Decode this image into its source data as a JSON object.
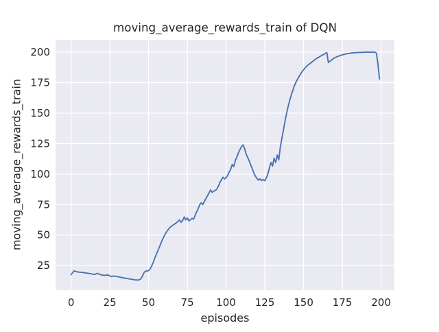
{
  "figure": {
    "background": "#ffffff"
  },
  "chart_data": {
    "type": "line",
    "title": "moving_average_rewards_train of DQN",
    "xlabel": "episodes",
    "ylabel": "moving_average_rewards_train",
    "x_ticks": [
      0,
      25,
      50,
      75,
      100,
      125,
      150,
      175,
      200
    ],
    "y_ticks": [
      25,
      50,
      75,
      100,
      125,
      150,
      175,
      200
    ],
    "xlim": [
      -10.0,
      208.6
    ],
    "ylim": [
      4.8,
      210.2
    ],
    "grid": true,
    "legend": "none",
    "style": {
      "axes_background": "#EAEAF2",
      "grid_color": "#FFFFFF",
      "line_color": "#4C72B0",
      "text_color": "#262626",
      "figure_background": "#FFFFFF"
    },
    "series": [
      {
        "name": "moving_average_rewards_train",
        "points": [
          [
            0,
            17.5
          ],
          [
            1,
            19.2
          ],
          [
            2,
            20.6
          ],
          [
            3,
            20.2
          ],
          [
            4,
            19.8
          ],
          [
            5,
            19.6
          ],
          [
            6,
            19.5
          ],
          [
            7,
            19.4
          ],
          [
            8,
            19.2
          ],
          [
            9,
            19.0
          ],
          [
            10,
            18.8
          ],
          [
            11,
            18.6
          ],
          [
            12,
            18.4
          ],
          [
            13,
            18.2
          ],
          [
            14,
            18.0
          ],
          [
            15,
            17.6
          ],
          [
            16,
            18.2
          ],
          [
            17,
            18.6
          ],
          [
            18,
            18.0
          ],
          [
            19,
            17.5
          ],
          [
            20,
            17.2
          ],
          [
            21,
            17.0
          ],
          [
            22,
            17.0
          ],
          [
            23,
            17.1
          ],
          [
            24,
            17.2
          ],
          [
            25,
            16.5
          ],
          [
            26,
            15.9
          ],
          [
            27,
            16.4
          ],
          [
            28,
            16.3
          ],
          [
            29,
            16.2
          ],
          [
            30,
            15.9
          ],
          [
            31,
            15.6
          ],
          [
            32,
            15.3
          ],
          [
            33,
            15.1
          ],
          [
            34,
            14.8
          ],
          [
            35,
            14.6
          ],
          [
            36,
            14.4
          ],
          [
            37,
            14.2
          ],
          [
            38,
            13.9
          ],
          [
            39,
            13.7
          ],
          [
            40,
            13.5
          ],
          [
            41,
            13.3
          ],
          [
            42,
            13.2
          ],
          [
            43,
            13.1
          ],
          [
            44,
            13.3
          ],
          [
            45,
            14.2
          ],
          [
            46,
            16.2
          ],
          [
            47,
            19.0
          ],
          [
            48,
            20.4
          ],
          [
            49,
            20.6
          ],
          [
            50,
            20.8
          ],
          [
            51,
            22.2
          ],
          [
            52,
            24.6
          ],
          [
            53,
            27.6
          ],
          [
            54,
            31.0
          ],
          [
            55,
            34.2
          ],
          [
            56,
            37.2
          ],
          [
            57,
            40.2
          ],
          [
            58,
            43.5
          ],
          [
            59,
            46.4
          ],
          [
            60,
            49.0
          ],
          [
            61,
            51.4
          ],
          [
            62,
            53.4
          ],
          [
            63,
            55.0
          ],
          [
            64,
            56.4
          ],
          [
            65,
            57.4
          ],
          [
            66,
            58.3
          ],
          [
            67,
            59.2
          ],
          [
            68,
            60.2
          ],
          [
            69,
            61.2
          ],
          [
            70,
            62.4
          ],
          [
            71,
            60.5
          ],
          [
            72,
            62.0
          ],
          [
            73,
            64.9
          ],
          [
            74,
            62.4
          ],
          [
            75,
            64.0
          ],
          [
            76,
            61.6
          ],
          [
            77,
            62.6
          ],
          [
            78,
            63.6
          ],
          [
            79,
            63.1
          ],
          [
            80,
            66.0
          ],
          [
            81,
            69.0
          ],
          [
            82,
            71.6
          ],
          [
            83,
            75.0
          ],
          [
            84,
            76.5
          ],
          [
            85,
            75.0
          ],
          [
            86,
            77.5
          ],
          [
            87,
            80.0
          ],
          [
            88,
            82.2
          ],
          [
            89,
            84.6
          ],
          [
            90,
            87.0
          ],
          [
            91,
            85.0
          ],
          [
            92,
            86.0
          ],
          [
            93,
            86.6
          ],
          [
            94,
            87.6
          ],
          [
            95,
            90.0
          ],
          [
            96,
            93.0
          ],
          [
            97,
            95.4
          ],
          [
            98,
            97.4
          ],
          [
            99,
            96.0
          ],
          [
            100,
            97.0
          ],
          [
            101,
            99.0
          ],
          [
            102,
            101.6
          ],
          [
            103,
            104.2
          ],
          [
            104,
            108.0
          ],
          [
            105,
            106.2
          ],
          [
            106,
            111.2
          ],
          [
            107,
            114.2
          ],
          [
            108,
            117.6
          ],
          [
            109,
            120.2
          ],
          [
            110,
            122.6
          ],
          [
            111,
            124.0
          ],
          [
            112,
            120.6
          ],
          [
            113,
            116.2
          ],
          [
            114,
            113.6
          ],
          [
            115,
            110.6
          ],
          [
            116,
            107.2
          ],
          [
            117,
            104.2
          ],
          [
            118,
            100.6
          ],
          [
            119,
            98.2
          ],
          [
            120,
            96.2
          ],
          [
            121,
            95.0
          ],
          [
            122,
            96.2
          ],
          [
            123,
            94.6
          ],
          [
            124,
            95.6
          ],
          [
            125,
            94.6
          ],
          [
            126,
            97.0
          ],
          [
            127,
            100.2
          ],
          [
            128,
            105.2
          ],
          [
            129,
            109.6
          ],
          [
            130,
            106.6
          ],
          [
            131,
            113.2
          ],
          [
            132,
            109.6
          ],
          [
            133,
            115.6
          ],
          [
            134,
            111.6
          ],
          [
            135,
            122.2
          ],
          [
            136,
            129.2
          ],
          [
            137,
            136.2
          ],
          [
            138,
            143.2
          ],
          [
            139,
            149.6
          ],
          [
            140,
            155.2
          ],
          [
            141,
            160.2
          ],
          [
            142,
            164.6
          ],
          [
            143,
            168.6
          ],
          [
            144,
            172.2
          ],
          [
            145,
            175.2
          ],
          [
            146,
            177.6
          ],
          [
            147,
            180.0
          ],
          [
            148,
            182.0
          ],
          [
            149,
            184.0
          ],
          [
            150,
            185.6
          ],
          [
            151,
            187.2
          ],
          [
            152,
            188.6
          ],
          [
            153,
            189.6
          ],
          [
            154,
            190.6
          ],
          [
            155,
            191.6
          ],
          [
            156,
            192.6
          ],
          [
            157,
            193.6
          ],
          [
            158,
            194.6
          ],
          [
            159,
            195.4
          ],
          [
            160,
            196.0
          ],
          [
            161,
            196.8
          ],
          [
            162,
            197.6
          ],
          [
            163,
            198.2
          ],
          [
            164,
            199.0
          ],
          [
            165,
            199.6
          ],
          [
            166,
            191.5
          ],
          [
            167,
            192.6
          ],
          [
            168,
            193.6
          ],
          [
            169,
            194.6
          ],
          [
            170,
            195.4
          ],
          [
            171,
            196.0
          ],
          [
            172,
            196.5
          ],
          [
            173,
            197.0
          ],
          [
            174,
            197.4
          ],
          [
            175,
            197.8
          ],
          [
            176,
            198.2
          ],
          [
            177,
            198.5
          ],
          [
            178,
            198.8
          ],
          [
            179,
            199.0
          ],
          [
            180,
            199.2
          ],
          [
            182,
            199.5
          ],
          [
            184,
            199.7
          ],
          [
            186,
            199.8
          ],
          [
            188,
            199.9
          ],
          [
            190,
            200.0
          ],
          [
            192,
            200.0
          ],
          [
            194,
            200.0
          ],
          [
            196,
            200.0
          ],
          [
            197,
            199.2
          ],
          [
            198,
            190.0
          ],
          [
            199,
            178.0
          ]
        ]
      }
    ]
  }
}
